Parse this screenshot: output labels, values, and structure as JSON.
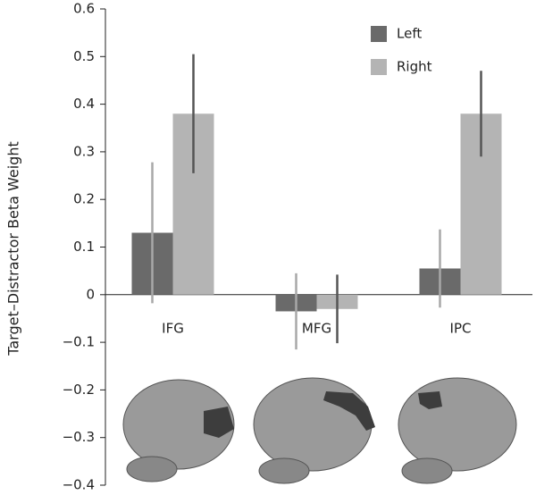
{
  "chart_data": {
    "type": "bar",
    "ylabel": "Target–Distractor Beta Weight",
    "categories": [
      "IFG",
      "MFG",
      "IPC"
    ],
    "series": [
      {
        "name": "Left",
        "color": "#6a6a6a",
        "error_color": "#a8a8a8",
        "values": [
          0.13,
          -0.035,
          0.055
        ],
        "errors": [
          0.148,
          0.08,
          0.082
        ]
      },
      {
        "name": "Right",
        "color": "#b4b4b4",
        "error_color": "#555555",
        "values": [
          0.38,
          -0.03,
          0.38
        ],
        "errors": [
          0.125,
          0.072,
          0.09
        ]
      }
    ],
    "ylim": [
      -0.4,
      0.6
    ],
    "yticks": [
      {
        "value": -0.4,
        "label": "−0.4"
      },
      {
        "value": -0.3,
        "label": "−0.3"
      },
      {
        "value": -0.2,
        "label": "−0.2"
      },
      {
        "value": -0.1,
        "label": "−0.1"
      },
      0,
      0.1,
      0.2,
      0.3,
      0.4,
      0.5,
      0.6
    ],
    "legend": "upper right"
  }
}
